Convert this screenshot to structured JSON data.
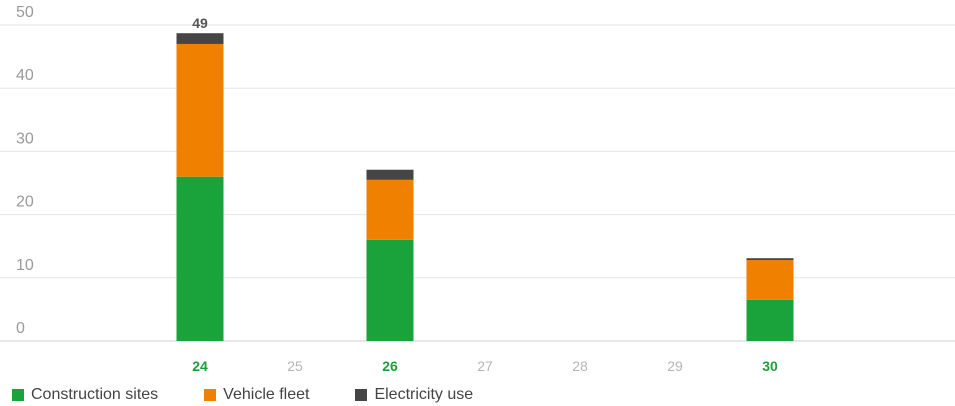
{
  "chart_data": {
    "type": "bar",
    "stacked": true,
    "categories": [
      "24",
      "25",
      "26",
      "27",
      "28",
      "29",
      "30"
    ],
    "highlighted_categories": [
      "24",
      "26",
      "30"
    ],
    "series": [
      {
        "name": "Construction sites",
        "color": "#1aa33b",
        "values": [
          26,
          0,
          16,
          0,
          0,
          0,
          6.5
        ]
      },
      {
        "name": "Vehicle fleet",
        "color": "#f08000",
        "values": [
          21,
          0,
          9.5,
          0,
          0,
          0,
          6.3
        ]
      },
      {
        "name": "Electricity use",
        "color": "#454545",
        "values": [
          1.7,
          0,
          1.6,
          0,
          0,
          0,
          0.3
        ]
      }
    ],
    "data_labels": [
      {
        "category": "24",
        "text": "49"
      }
    ],
    "y_ticks": [
      0,
      10,
      20,
      30,
      40,
      50
    ],
    "ylim": [
      0,
      50
    ],
    "grid": true,
    "legend_position": "bottom-left",
    "highlight_color": "#1f9d3a"
  }
}
